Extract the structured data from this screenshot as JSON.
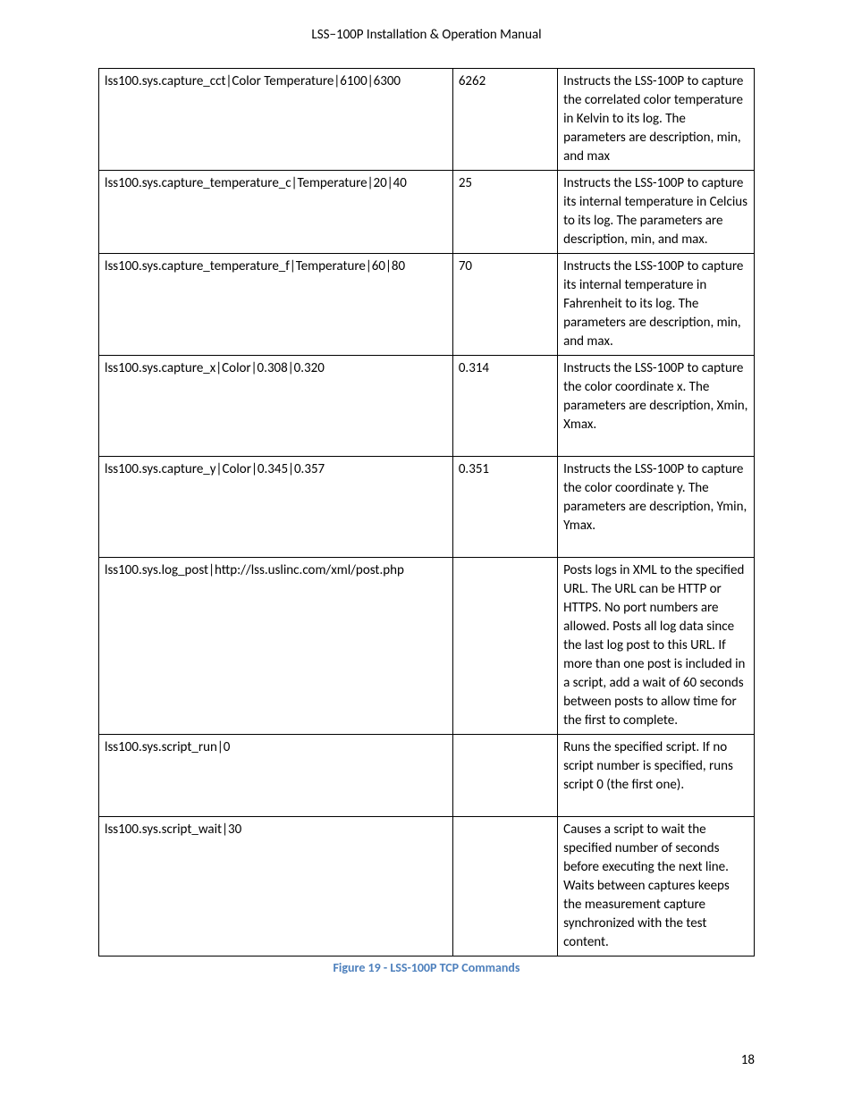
{
  "header": {
    "title": "LSS−100P Installation & Operation Manual"
  },
  "table": {
    "rows": [
      {
        "cmd": "lss100.sys.capture_cct|Color Temperature|6100|6300",
        "resp": "6262",
        "desc": "Instructs the LSS-100P to capture the correlated color temperature in Kelvin to its log. The parameters are description, min, and max"
      },
      {
        "cmd": "lss100.sys.capture_temperature_c|Temperature|20|40",
        "resp": "25",
        "desc": "Instructs the LSS-100P to capture its internal temperature in Celcius to its log. The parameters are description, min, and max."
      },
      {
        "cmd": "lss100.sys.capture_temperature_f|Temperature|60|80",
        "resp": "70",
        "desc": "Instructs the LSS-100P to capture its internal temperature in Fahrenheit to its log. The parameters are description, min, and max."
      },
      {
        "cmd": "lss100.sys.capture_x|Color|0.308|0.320",
        "resp": "0.314",
        "desc": "Instructs the LSS-100P to capture the color coordinate x. The parameters are description, Xmin, Xmax.",
        "pad": true
      },
      {
        "cmd": "lss100.sys.capture_y|Color|0.345|0.357",
        "resp": "0.351",
        "desc": "Instructs the LSS-100P to capture the color coordinate y. The parameters are description, Ymin, Ymax.",
        "pad": true
      },
      {
        "cmd": "lss100.sys.log_post|http://lss.uslinc.com/xml/post.php",
        "resp": "",
        "desc": "Posts logs in XML to the specified URL. The URL can be HTTP or HTTPS. No port numbers are allowed. Posts all log data since the last log post to this URL. If more than one post is included in a script, add a wait of 60 seconds between posts to allow time for the first to complete."
      },
      {
        "cmd": "lss100.sys.script_run|0",
        "resp": "",
        "desc": "Runs the specified script. If no script number is specified, runs script 0 (the first one).",
        "pad": true
      },
      {
        "cmd": "lss100.sys.script_wait|30",
        "resp": "",
        "desc": "Causes a script to wait the specified number of seconds before executing the next line. Waits between captures keeps the measurement capture synchronized with the test content."
      }
    ]
  },
  "caption": {
    "text": "Figure 19 - LSS-100P TCP Commands"
  },
  "footer": {
    "page_number": "18"
  }
}
